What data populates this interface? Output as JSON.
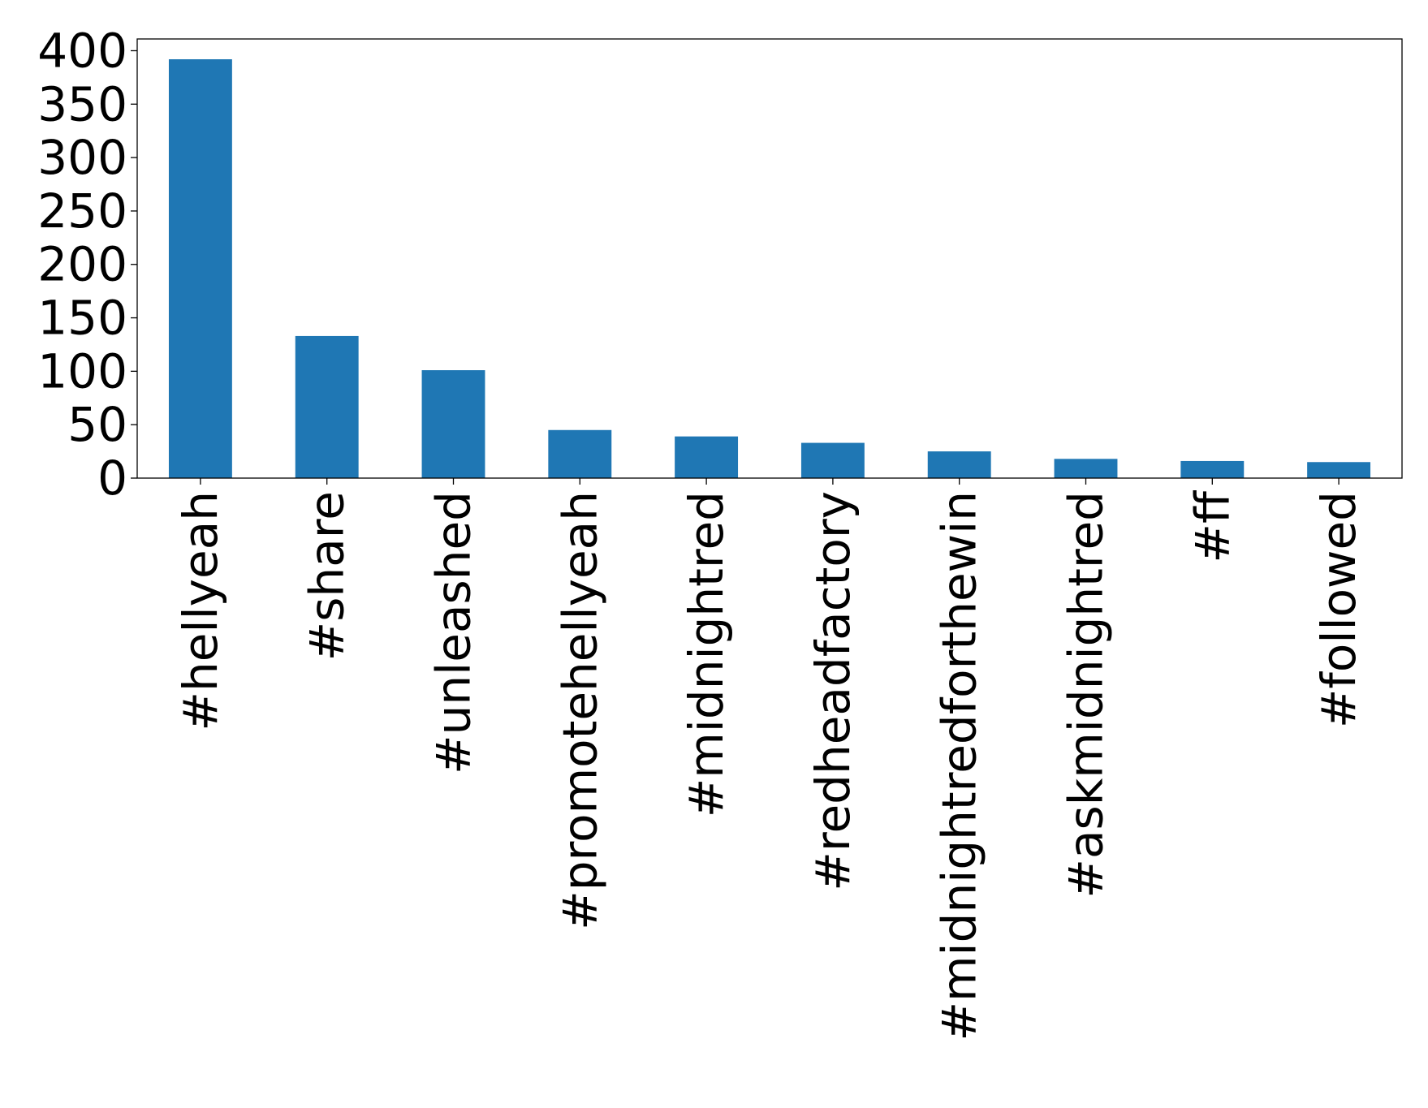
{
  "chart_data": {
    "type": "bar",
    "categories": [
      "#hellyeah",
      "#share",
      "#unleashed",
      "#promotehellyeah",
      "#midnightred",
      "#redheadfactory",
      "#midnightredforthewin",
      "#askmidnightred",
      "#ff",
      "#followed"
    ],
    "values": [
      392,
      133,
      101,
      45,
      39,
      33,
      25,
      18,
      16,
      15
    ],
    "title": "",
    "xlabel": "",
    "ylabel": "",
    "ylim": [
      0,
      411
    ],
    "yticks": [
      0,
      50,
      100,
      150,
      200,
      250,
      300,
      350,
      400
    ],
    "grid": false,
    "bar_color": "#1f77b4",
    "legend": null
  }
}
